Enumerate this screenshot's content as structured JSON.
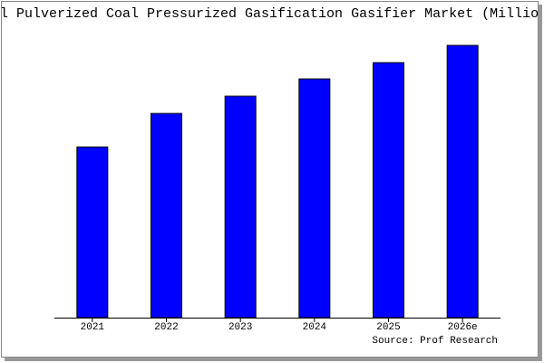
{
  "chart_data": {
    "type": "bar",
    "title": "l Pulverized Coal Pressurized Gasification Gasifier Market (Millio",
    "source": "Source: Prof Research",
    "categories": [
      "2021",
      "2022",
      "2023",
      "2024",
      "2025",
      "2026e"
    ],
    "values": [
      188,
      225,
      244,
      263,
      281,
      300
    ],
    "color": "#0000ff",
    "ylim": [
      0,
      300
    ]
  }
}
